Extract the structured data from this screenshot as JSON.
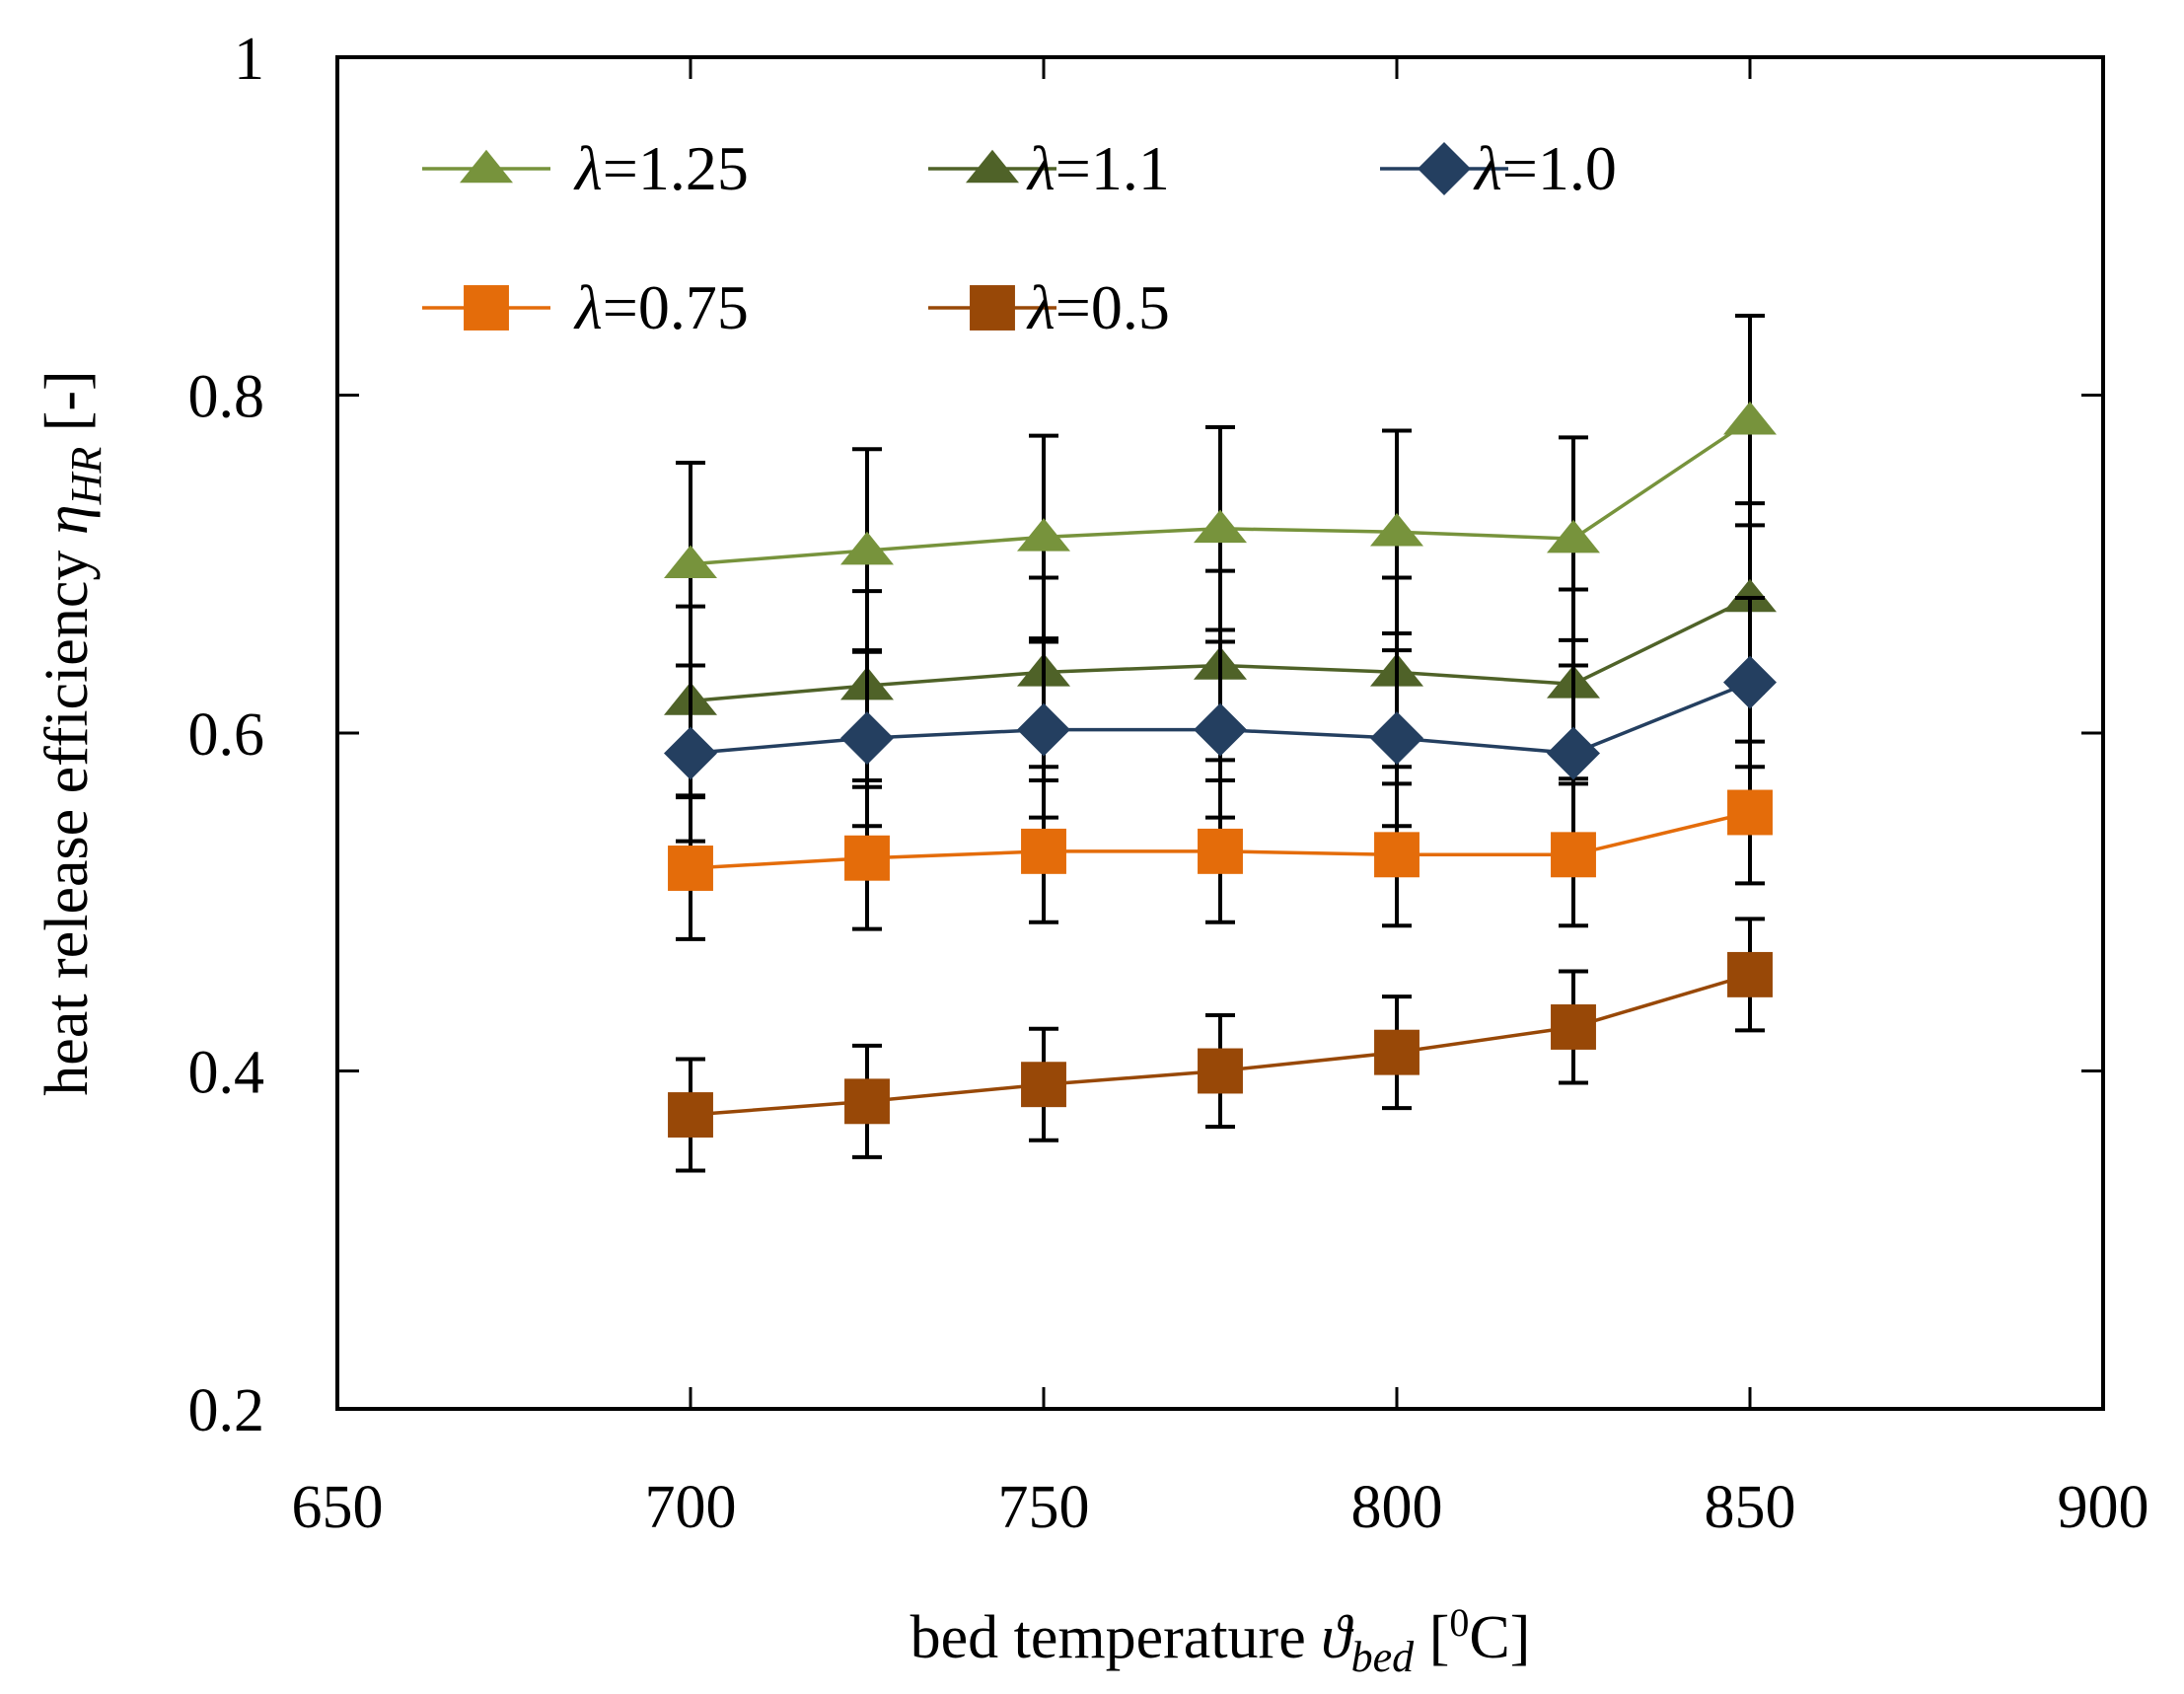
{
  "chart_data": {
    "type": "line",
    "title": "",
    "xlabel": {
      "text": "bed temperature ",
      "symbol": "ϑ",
      "subscript": "bed",
      "unit_open": " [",
      "degree": "0",
      "unit_close": "C]"
    },
    "ylabel": {
      "text": "heat release efficiency ",
      "symbol": "η",
      "subscript": "HR",
      "unit": " [-]"
    },
    "xlim": [
      650,
      900
    ],
    "ylim": [
      0.2,
      1.0
    ],
    "xticks": [
      650,
      700,
      750,
      800,
      850,
      900
    ],
    "xtick_labels": [
      "650",
      "700",
      "750",
      "800",
      "850",
      "900"
    ],
    "yticks": [
      0.2,
      0.4,
      0.6,
      0.8,
      1.0
    ],
    "ytick_labels": [
      "0.2",
      "0.4",
      "0.6",
      "0.8",
      "1"
    ],
    "grid": false,
    "legend_position": "top-left",
    "x": [
      700,
      725,
      750,
      775,
      800,
      825,
      850
    ],
    "series": [
      {
        "name": "λ=1.25",
        "lambda_label": "λ",
        "value_label": "=1.25",
        "marker": "triangle",
        "color": "#77933c",
        "values": [
          0.7,
          0.708,
          0.716,
          0.721,
          0.719,
          0.715,
          0.785
        ],
        "err": [
          0.06,
          0.06,
          0.06,
          0.06,
          0.06,
          0.06,
          0.062
        ]
      },
      {
        "name": "λ=1.1",
        "lambda_label": "λ",
        "value_label": "=1.1",
        "marker": "triangle",
        "color": "#4f6228",
        "values": [
          0.619,
          0.628,
          0.636,
          0.64,
          0.636,
          0.629,
          0.68
        ],
        "err": [
          0.056,
          0.056,
          0.056,
          0.056,
          0.056,
          0.056,
          0.056
        ]
      },
      {
        "name": "λ=1.0",
        "lambda_label": "λ",
        "value_label": "=1.0",
        "marker": "diamond",
        "color": "#243f60",
        "values": [
          0.588,
          0.597,
          0.602,
          0.602,
          0.597,
          0.588,
          0.63
        ],
        "err": [
          0.052,
          0.052,
          0.052,
          0.052,
          0.052,
          0.052,
          0.05
        ]
      },
      {
        "name": "λ=0.75",
        "lambda_label": "λ",
        "value_label": "=0.75",
        "marker": "square",
        "color": "#e46c0a",
        "values": [
          0.52,
          0.526,
          0.53,
          0.53,
          0.528,
          0.528,
          0.553
        ],
        "err": [
          0.042,
          0.042,
          0.042,
          0.042,
          0.042,
          0.042,
          0.042
        ]
      },
      {
        "name": "λ=0.5",
        "lambda_label": "λ",
        "value_label": "=0.5",
        "marker": "square",
        "color": "#984807",
        "values": [
          0.374,
          0.382,
          0.392,
          0.4,
          0.411,
          0.426,
          0.457
        ],
        "err": [
          0.033,
          0.033,
          0.033,
          0.033,
          0.033,
          0.033,
          0.033
        ]
      }
    ]
  }
}
